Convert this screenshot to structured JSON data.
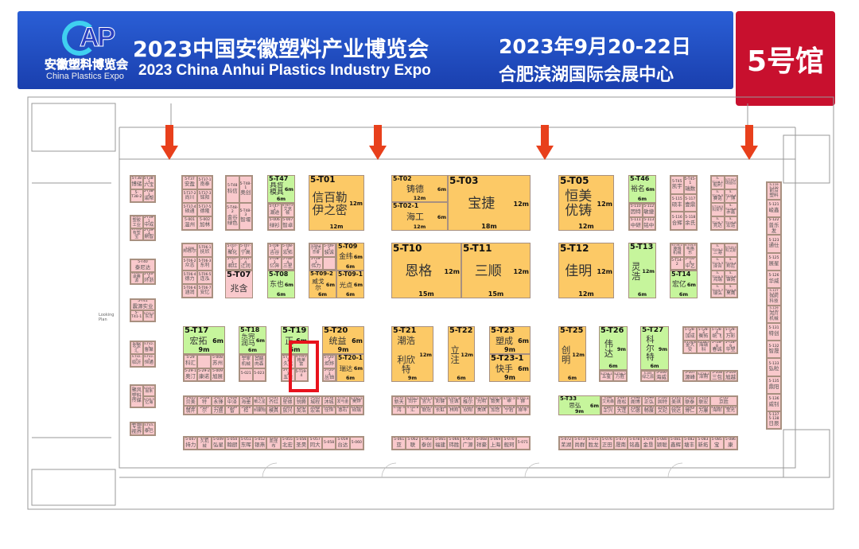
{
  "header": {
    "title_cn": "2023中国安徽塑料产业博览会",
    "title_en": "2023 China Anhui Plastics Industry Expo",
    "date": "2023年9月20-22日",
    "venue": "合肥滨湖国际会展中心",
    "hall": "5号馆",
    "logo": {
      "mark": "AP",
      "text_cn": "安徽塑料博览会",
      "text_en": "China Plastics Expo"
    }
  },
  "map": {
    "note": "Looking Plan",
    "colors": {
      "large_booth": "#fcc966",
      "medium_booth": "#c6f59c",
      "small_booth": "#f9c9cc",
      "entrance_arrow": "#e8401c",
      "highlight": "#e8121c"
    },
    "entrance_arrows": 4
  },
  "booths": [
    {
      "id": "5-T47",
      "name": "具哲模具",
      "d1": "6m",
      "d2": "6m",
      "color": "green"
    },
    {
      "id": "5-T01",
      "name": "信百勒\n伊之密",
      "d1": "12m",
      "d2": "12m",
      "color": "orange"
    },
    {
      "id": "5-T02",
      "name": "铸德",
      "d1": "6m",
      "d2": "12m",
      "color": "orange"
    },
    {
      "id": "5-T02-1",
      "name": "海工",
      "d1": "6m",
      "d2": "12m",
      "color": "orange"
    },
    {
      "id": "5-T03",
      "name": "宝捷",
      "d1": "12m",
      "d2": "18m",
      "color": "orange"
    },
    {
      "id": "5-T05",
      "name": "恒美\n优铸",
      "d1": "12m",
      "d2": "12m",
      "color": "orange"
    },
    {
      "id": "5-T46",
      "name": "裕名",
      "d1": "6m",
      "d2": "6m",
      "color": "green"
    },
    {
      "id": "5-T07",
      "name": "兆含",
      "d1": "",
      "d2": "",
      "color": "pink"
    },
    {
      "id": "5-T08",
      "name": "东也",
      "d1": "6m",
      "d2": "6m",
      "color": "green"
    },
    {
      "id": "5-T09",
      "name": "金纬",
      "d1": "6m",
      "d2": "6m",
      "color": "orange"
    },
    {
      "id": "5-T09-2",
      "name": "威戈尔",
      "d1": "6m",
      "d2": "6m",
      "color": "orange"
    },
    {
      "id": "5-T09-1",
      "name": "光点",
      "d1": "6m",
      "d2": "6m",
      "color": "orange"
    },
    {
      "id": "5-T10",
      "name": "恩格",
      "d1": "12m",
      "d2": "15m",
      "color": "orange"
    },
    {
      "id": "5-T11",
      "name": "三顺",
      "d1": "12m",
      "d2": "15m",
      "color": "orange"
    },
    {
      "id": "5-T12",
      "name": "佳明",
      "d1": "12m",
      "d2": "12m",
      "color": "orange"
    },
    {
      "id": "5-T13",
      "name": "灵浩",
      "d1": "12m",
      "d2": "6m",
      "color": "green"
    },
    {
      "id": "5-T14",
      "name": "宏亿",
      "d1": "6m",
      "d2": "6m",
      "color": "green"
    },
    {
      "id": "5-T17",
      "name": "宏拓",
      "d1": "6m",
      "d2": "9m",
      "color": "green"
    },
    {
      "id": "5-T18",
      "name": "东莞\n润马",
      "d1": "6m",
      "d2": "6m",
      "color": "green"
    },
    {
      "id": "5-T19",
      "name": "正",
      "d1": "6m",
      "d2": "6m",
      "color": "green"
    },
    {
      "id": "5-T20",
      "name": "统益",
      "d1": "6m",
      "d2": "9m",
      "color": "orange"
    },
    {
      "id": "5-T20-1",
      "name": "瑞达",
      "d1": "6m",
      "d2": "6m",
      "color": "orange"
    },
    {
      "id": "5-T21",
      "name": "潮浩\n\n利欣特",
      "d1": "12m",
      "d2": "9m",
      "color": "orange"
    },
    {
      "id": "5-T22",
      "name": "立注",
      "d1": "12m",
      "d2": "6m",
      "color": "orange"
    },
    {
      "id": "5-T23",
      "name": "塑成",
      "d1": "6m",
      "d2": "9m",
      "color": "orange"
    },
    {
      "id": "5-T23-1",
      "name": "快手",
      "d1": "6m",
      "d2": "9m",
      "color": "orange"
    },
    {
      "id": "5-T25",
      "name": "创明",
      "d1": "12m",
      "d2": "6m",
      "color": "orange"
    },
    {
      "id": "5-T26",
      "name": "伟达",
      "d1": "9m",
      "d2": "6m",
      "color": "green"
    },
    {
      "id": "5-T27",
      "name": "科尔特",
      "d1": "9m",
      "d2": "6m",
      "color": "green"
    },
    {
      "id": "5-T33",
      "name": "思弘",
      "d1": "6m",
      "d2": "9m",
      "color": "green"
    }
  ],
  "small_blocks": {
    "T37": [
      {
        "id": "5-T37",
        "name": "安盈"
      },
      {
        "id": "5-T37-1",
        "name": "南泰"
      },
      {
        "id": "5-T37-2",
        "name": "尚川"
      },
      {
        "id": "5-T37-3",
        "name": "铭阳"
      },
      {
        "id": "5-T37-4",
        "name": "硕通"
      },
      {
        "id": "5-T37-5",
        "name": "德隆"
      },
      {
        "id": "5-001",
        "name": "温州"
      },
      {
        "id": "5-002",
        "name": "加林"
      }
    ],
    "T48": [
      {
        "id": "5-T48",
        "name": "科信"
      },
      {
        "id": "5-T48-1",
        "name": "奥创"
      },
      {
        "id": "5-T48-2",
        "name": "金谷绿色"
      },
      {
        "id": "5-T48-3",
        "name": "智堰"
      }
    ],
    "T47s": [
      {
        "id": "5-T47-1",
        "name": "潮途"
      },
      {
        "id": "5-T47-2",
        "name": "艾克顿"
      },
      {
        "id": "5-006",
        "name": "绿衫"
      },
      {
        "id": "5-007",
        "name": "智卓"
      }
    ],
    "T46s": [
      {
        "id": "5-110",
        "name": "因特"
      },
      {
        "id": "5-112",
        "name": "敏捷"
      },
      {
        "id": "5-111",
        "name": "中研"
      },
      {
        "id": "5-113",
        "name": "铭中"
      }
    ],
    "T45": [
      {
        "id": "5-T45",
        "name": "凯宇"
      },
      {
        "id": "5-T45-1",
        "name": "瑞数"
      },
      {
        "id": "5-115",
        "name": "硕丰"
      },
      {
        "id": "5-117",
        "name": "壹鼎"
      },
      {
        "id": "5-116",
        "name": "合辉"
      },
      {
        "id": "5-118",
        "name": "余氏"
      }
    ],
    "T116": [
      {
        "id": "5-T116-1",
        "name": "船利"
      },
      {
        "id": "5-T116-2",
        "name": "瑞益信"
      },
      {
        "id": "5-T116-3",
        "name": "赛诺"
      },
      {
        "id": "5-T116-4",
        "name": "广博"
      },
      {
        "id": "5-T116-5",
        "name": "科荣亨"
      },
      {
        "id": "5-T116-6",
        "name": "赤鑫"
      },
      {
        "id": "5-T116-7",
        "name": "竞达"
      },
      {
        "id": "5-T116-8",
        "name": "宏运"
      }
    ],
    "T06": [
      {
        "id": "5-T06",
        "name": "邦栋尔"
      },
      {
        "id": "5-T06-1",
        "name": "抚欣"
      },
      {
        "id": "5-T06-2",
        "name": "众志"
      },
      {
        "id": "5-T06-3",
        "name": "东利"
      },
      {
        "id": "5-T06-4",
        "name": "德力"
      },
      {
        "id": "5-T06-5",
        "name": "连泓"
      },
      {
        "id": "5-T06-6",
        "name": "涵润"
      },
      {
        "id": "5-T06-7",
        "name": "安忆"
      }
    ],
    "T07s": [
      {
        "id": "5-T07-1",
        "name": "聚化"
      },
      {
        "id": "5-T07-2",
        "name": "宁高"
      },
      {
        "id": "5-T07-3",
        "name": "君红"
      },
      {
        "id": "5-T07-4",
        "name": "迁润"
      }
    ],
    "T08s": [
      {
        "id": "5-T08-1",
        "name": "吉谷"
      },
      {
        "id": "5-T08-2",
        "name": "宏拓"
      },
      {
        "id": "5-T08-3",
        "name": "亿奔"
      },
      {
        "id": "5-T08-4",
        "name": "三星"
      }
    ],
    "T09s": [
      {
        "id": "5-T09-4",
        "name": "宁波吉普睿"
      },
      {
        "id": "5-T09-5",
        "name": "骏诚"
      },
      {
        "id": "5-T09-3",
        "name": "伟力"
      },
      {
        "id": "",
        "name": ""
      }
    ],
    "T14s": [
      {
        "id": "5-T14-1",
        "name": "港瑞机械"
      },
      {
        "id": "5-T14-3",
        "name": "韦格乐"
      },
      {
        "id": "5-T14-2",
        "name": ""
      },
      {
        "id": "5-T14-4",
        "name": "中艺"
      }
    ],
    "T115": [
      {
        "id": "5-T115-1",
        "name": "三港"
      },
      {
        "id": "5-T115-2",
        "name": "科艾斯"
      },
      {
        "id": "5-T115-3",
        "name": "泽合"
      },
      {
        "id": "5-T115-4",
        "name": "邦尼"
      },
      {
        "id": "5-T115-5",
        "name": "鸿瑞"
      },
      {
        "id": "5-T115-6",
        "name": "锋鈍"
      },
      {
        "id": "5-T115-7",
        "name": "瑞弘"
      },
      {
        "id": "5-T115-8",
        "name": "昊鹰"
      }
    ],
    "T17s": [
      {
        "id": "5-29",
        "name": "科汇"
      },
      {
        "id": "",
        "name": ""
      },
      {
        "id": "5-008",
        "name": "苏州"
      },
      {
        "id": "5-29-1",
        "name": "奥汀"
      },
      {
        "id": "5-29-2",
        "name": "康诺"
      },
      {
        "id": "5-009",
        "name": "旭展"
      }
    ],
    "T18s": [
      {
        "id": "5-020",
        "name": "宇丰机械"
      },
      {
        "id": "5-022",
        "name": "百精肉森"
      },
      {
        "id": "5-021",
        "name": ""
      },
      {
        "id": "5-023",
        "name": ""
      }
    ],
    "T19s": [
      {
        "id": "5-T19-1",
        "name": "久远"
      },
      {
        "id": "5-T19-2",
        "name": "格莱富"
      },
      {
        "id": "5-T19-3",
        "name": "五合"
      },
      {
        "id": "5-T19-4",
        "name": ""
      }
    ],
    "T20s": [
      {
        "id": "5-T20-2",
        "name": "炬烨"
      },
      {
        "id": "5-T20-3",
        "name": "丛铀"
      }
    ],
    "T26s": [
      {
        "id": "5-T26-1",
        "name": "五星"
      },
      {
        "id": "5-T26-2",
        "name": "万胜"
      }
    ],
    "T27s": [
      {
        "id": "5-105",
        "name": "绿之源"
      },
      {
        "id": "5-106",
        "name": "海威"
      }
    ],
    "T28": [
      {
        "id": "5-T28-2",
        "name": "加成"
      },
      {
        "id": "5-T28-3",
        "name": "衡拓"
      },
      {
        "id": "5-T28-4",
        "name": "统飞"
      },
      {
        "id": "5-T28-5",
        "name": "万彩"
      },
      {
        "id": "5-T28-6",
        "name": "金大安"
      },
      {
        "id": "5-T28-7",
        "name": "海瑞科"
      },
      {
        "id": "5-T28-8",
        "name": "春诚"
      },
      {
        "id": "5-T28-9",
        "name": "华塑"
      }
    ],
    "R107": [
      {
        "id": "5-107",
        "name": "源峰"
      },
      {
        "id": "5-T28-1",
        "name": "泽朔"
      },
      {
        "id": "5-108",
        "name": "三包"
      },
      {
        "id": "5-109",
        "name": "旭越"
      }
    ],
    "S1": [
      {
        "id": "5-025",
        "name": "贝美"
      },
      {
        "id": "5-026",
        "name": "特"
      },
      {
        "id": "5-027",
        "name": "永锋"
      },
      {
        "id": "5-028",
        "name": "中泽"
      },
      {
        "id": "5-029",
        "name": "海墨"
      },
      {
        "id": "5-030",
        "name": "敏之星"
      },
      {
        "id": "5-031",
        "name": "齐红"
      },
      {
        "id": "5-032",
        "name": "星德"
      },
      {
        "id": "5-033",
        "name": "锐腾"
      },
      {
        "id": "5-035",
        "name": "城程"
      },
      {
        "id": "5-T30",
        "name": "沐城"
      },
      {
        "id": "5-T30-1",
        "name": "发与金"
      },
      {
        "id": "5-T30-2",
        "name": "昊烨"
      },
      {
        "id": "5-036",
        "name": "翡开"
      },
      {
        "id": "5-037",
        "name": "尔"
      },
      {
        "id": "5-038",
        "name": "力盛"
      },
      {
        "id": "5-039",
        "name": "智"
      },
      {
        "id": "5-040",
        "name": "检"
      },
      {
        "id": "5-041",
        "name": "科聚翔"
      },
      {
        "id": "5-042",
        "name": "模具"
      },
      {
        "id": "5-043",
        "name": "族兴"
      },
      {
        "id": "5-045",
        "name": "英浩"
      },
      {
        "id": "5-046",
        "name": "宏诺"
      },
      {
        "id": "5-T30-3",
        "name": "佳恒"
      },
      {
        "id": "5-T30-4",
        "name": "愚石"
      },
      {
        "id": "5-T30-5",
        "name": "硕瑞"
      }
    ],
    "S2": [
      {
        "id": "5-T31",
        "name": "新天"
      },
      {
        "id": "5-T31-1",
        "name": "同宇"
      },
      {
        "id": "5-T31-2",
        "name": "昱亢"
      },
      {
        "id": "5-T31-3",
        "name": "彩健"
      },
      {
        "id": "5-T31-4",
        "name": "佳诚"
      },
      {
        "id": "5-T32",
        "name": "稚尔"
      },
      {
        "id": "5-T32-1",
        "name": "光明"
      },
      {
        "id": "5-T32-2",
        "name": "毅美"
      },
      {
        "id": "5-T32-3",
        "name": "申"
      },
      {
        "id": "5-T32-4",
        "name": "狮"
      },
      {
        "id": "5-T31-5",
        "name": "鸿"
      },
      {
        "id": "5-T31-6",
        "name": "汇"
      },
      {
        "id": "5-T31-7",
        "name": "联冠"
      },
      {
        "id": "5-T31-8",
        "name": "长虹"
      },
      {
        "id": "5-T31-9",
        "name": "林邦"
      },
      {
        "id": "5-T32-5",
        "name": "欣翔"
      },
      {
        "id": "5-T32-6",
        "name": "美琪"
      },
      {
        "id": "5-T32-7",
        "name": "加恁"
      },
      {
        "id": "5-T32-8",
        "name": "宁岩"
      },
      {
        "id": "5-T32-9",
        "name": "柳丰"
      }
    ],
    "S3": [
      {
        "id": "5-096",
        "name": "艾克森"
      },
      {
        "id": "5-097",
        "name": "南松"
      },
      {
        "id": "5-098",
        "name": "阁博"
      },
      {
        "id": "5-099",
        "name": "正弘"
      },
      {
        "id": "5-100",
        "name": "固特"
      },
      {
        "id": "5-101",
        "name": "美琪"
      },
      {
        "id": "5-102",
        "name": "联泰"
      },
      {
        "id": "5-103",
        "name": "联宏"
      },
      {
        "id": "5-T35",
        "name": "京胜"
      },
      {
        "id": "5-087",
        "name": "正兴"
      },
      {
        "id": "5-088",
        "name": "大连"
      },
      {
        "id": "5-089",
        "name": "亿德"
      },
      {
        "id": "5-090",
        "name": "畅展"
      },
      {
        "id": "5-091",
        "name": "文纪"
      },
      {
        "id": "5-092",
        "name": "锐达"
      },
      {
        "id": "5-093",
        "name": "博仁"
      },
      {
        "id": "5-095",
        "name": "万康"
      },
      {
        "id": "5-T35-1",
        "name": "海翔"
      },
      {
        "id": "5-T35-2",
        "name": "莹光"
      }
    ],
    "B1": [
      {
        "id": "5-047",
        "name": "持力"
      },
      {
        "id": "5-048",
        "name": "久机械"
      },
      {
        "id": "5-049",
        "name": "弘星"
      },
      {
        "id": "5-050",
        "name": "翰厨"
      },
      {
        "id": "5-051",
        "name": "东晖"
      },
      {
        "id": "5-052",
        "name": "银燕"
      },
      {
        "id": "5-053",
        "name": "凯佳布"
      },
      {
        "id": "5-055",
        "name": "北宏"
      },
      {
        "id": "5-056",
        "name": "圣昊"
      },
      {
        "id": "5-057",
        "name": "同大"
      },
      {
        "id": "5-058",
        "name": ""
      },
      {
        "id": "5-059",
        "name": "台达"
      },
      {
        "id": "5-060",
        "name": ""
      }
    ],
    "B2": [
      {
        "id": "5-061",
        "name": "亚"
      },
      {
        "id": "5-062",
        "name": "联"
      },
      {
        "id": "5-063",
        "name": "泰创"
      },
      {
        "id": "5-065",
        "name": "福建"
      },
      {
        "id": "5-066",
        "name": "玮胜"
      },
      {
        "id": "5-067",
        "name": "广源"
      },
      {
        "id": "5-068",
        "name": "祥豪"
      },
      {
        "id": "5-069",
        "name": "上海"
      },
      {
        "id": "5-070",
        "name": "舰珂"
      },
      {
        "id": "5-071",
        "name": ""
      }
    ],
    "B3": [
      {
        "id": "5-072",
        "name": "芜湖"
      },
      {
        "id": "5-073",
        "name": "尚群"
      },
      {
        "id": "5-075",
        "name": "胜龙"
      },
      {
        "id": "5-076",
        "name": "正田"
      },
      {
        "id": "5-077",
        "name": "晟南"
      },
      {
        "id": "5-078",
        "name": "铭鑫"
      },
      {
        "id": "5-079",
        "name": "金垦"
      },
      {
        "id": "5-080",
        "name": "颖聪"
      },
      {
        "id": "5-081",
        "name": "鑫辉"
      },
      {
        "id": "5-082",
        "name": "塘丰"
      },
      {
        "id": "5-083",
        "name": "新拓"
      },
      {
        "id": "5-085",
        "name": "宝"
      },
      {
        "id": "5-086",
        "name": "康"
      }
    ],
    "L38": [
      {
        "id": "5-T38",
        "name": "博储"
      },
      {
        "id": "5-T38-1",
        "name": "六宝"
      },
      {
        "id": "5-T38-2",
        "name": ""
      },
      {
        "id": "5-T38-3",
        "name": "诺帮"
      }
    ],
    "L39": [
      {
        "id": "5-T39",
        "name": "塑胶工业"
      },
      {
        "id": "5-T39-1",
        "name": "中成"
      },
      {
        "id": "5-T39-2",
        "name": "有塑宝"
      },
      {
        "id": "5-T39-3",
        "name": "鼎智"
      }
    ],
    "L40": [
      {
        "id": "5-T40",
        "name": "泰尼达"
      },
      {
        "id": "5-T40-1",
        "name": "承腾源"
      },
      {
        "id": "5-T40-2",
        "name": "环浙"
      }
    ],
    "L41": [
      {
        "id": "5-T41",
        "name": "震源实业"
      },
      {
        "id": "5-T41-1",
        "name": ""
      },
      {
        "id": "5-T41-2",
        "name": "东洋"
      }
    ],
    "L42": [
      {
        "id": "5-T42",
        "name": "宏塑汇"
      },
      {
        "id": "5-T42-1",
        "name": "鲁聚"
      },
      {
        "id": "5-T42-2",
        "name": "临沂"
      },
      {
        "id": "5-T42-3",
        "name": "恒通"
      }
    ],
    "L43": [
      {
        "id": "",
        "name": "聚风塑料传媒"
      },
      {
        "id": "5-T43-1",
        "name": "易禾"
      },
      {
        "id": "5-T43-3",
        "name": "亿海"
      }
    ],
    "L44": [
      {
        "id": "",
        "name": "专塑视界"
      },
      {
        "id": "5-T43-5",
        "name": "泰巴"
      }
    ],
    "RC": [
      {
        "id": "5-119 5-120",
        "name": "前沿塑料"
      },
      {
        "id": "5-121",
        "name": "峻鑫"
      },
      {
        "id": "5-122",
        "name": "普乐发"
      },
      {
        "id": "5-123",
        "name": "通仕"
      },
      {
        "id": "5-125",
        "name": "展星"
      },
      {
        "id": "5-126",
        "name": "华威"
      },
      {
        "id": "5-127 5-128",
        "name": "炜利科技"
      },
      {
        "id": "5-129 5-130",
        "name": "鸿川机械"
      },
      {
        "id": "5-131",
        "name": "特创"
      },
      {
        "id": "5-132",
        "name": "智晟"
      },
      {
        "id": "5-133",
        "name": "弘粒"
      },
      {
        "id": "5-135",
        "name": "鼎阳"
      },
      {
        "id": "5-136",
        "name": "威钊"
      },
      {
        "id": "5-137 5-138",
        "name": "日辰"
      }
    ]
  }
}
